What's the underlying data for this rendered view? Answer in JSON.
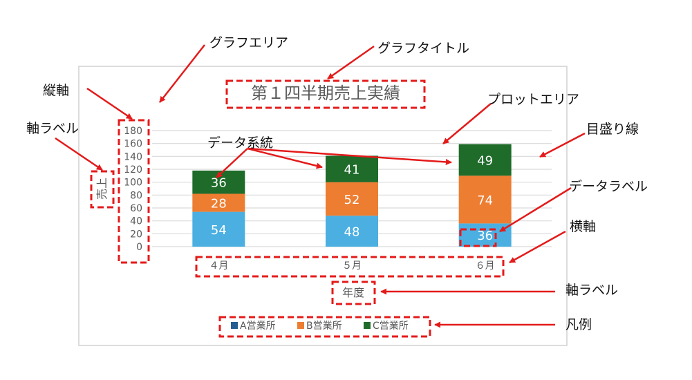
{
  "chart_data": {
    "type": "bar",
    "stacked": true,
    "title": "第１四半期売上実績",
    "xlabel": "年度",
    "ylabel": "売上",
    "categories": [
      "４月",
      "５月",
      "６月"
    ],
    "ylim": [
      0,
      180
    ],
    "yticks": [
      0,
      20,
      40,
      60,
      80,
      100,
      120,
      140,
      160,
      180
    ],
    "grid": true,
    "legend_position": "bottom",
    "series": [
      {
        "name": "A営業所",
        "values": [
          54,
          48,
          36
        ],
        "color": "#4bafe1",
        "legend_color": "#255e91"
      },
      {
        "name": "B営業所",
        "values": [
          28,
          52,
          74
        ],
        "color": "#ed7d31",
        "legend_color": "#ed7d31"
      },
      {
        "name": "C営業所",
        "values": [
          36,
          41,
          49
        ],
        "color": "#1e6b2a",
        "legend_color": "#1e6b2a"
      }
    ]
  },
  "annotations": {
    "graph_area": "グラフエリア",
    "graph_title": "グラフタイトル",
    "vertical_axis": "縦軸",
    "plot_area": "プロットエリア",
    "axis_label_left": "軸ラベル",
    "gridlines": "目盛り線",
    "data_series": "データ系統",
    "data_label": "データラベル",
    "horizontal_axis": "横軸",
    "axis_label_bottom": "軸ラベル",
    "legend": "凡例"
  },
  "colors": {
    "callout_red": "#e41a1a",
    "axis_text": "#595959",
    "gridline": "#d9d9d9",
    "chart_border": "#d0d0d0",
    "data_label_text": "#ffffff"
  }
}
